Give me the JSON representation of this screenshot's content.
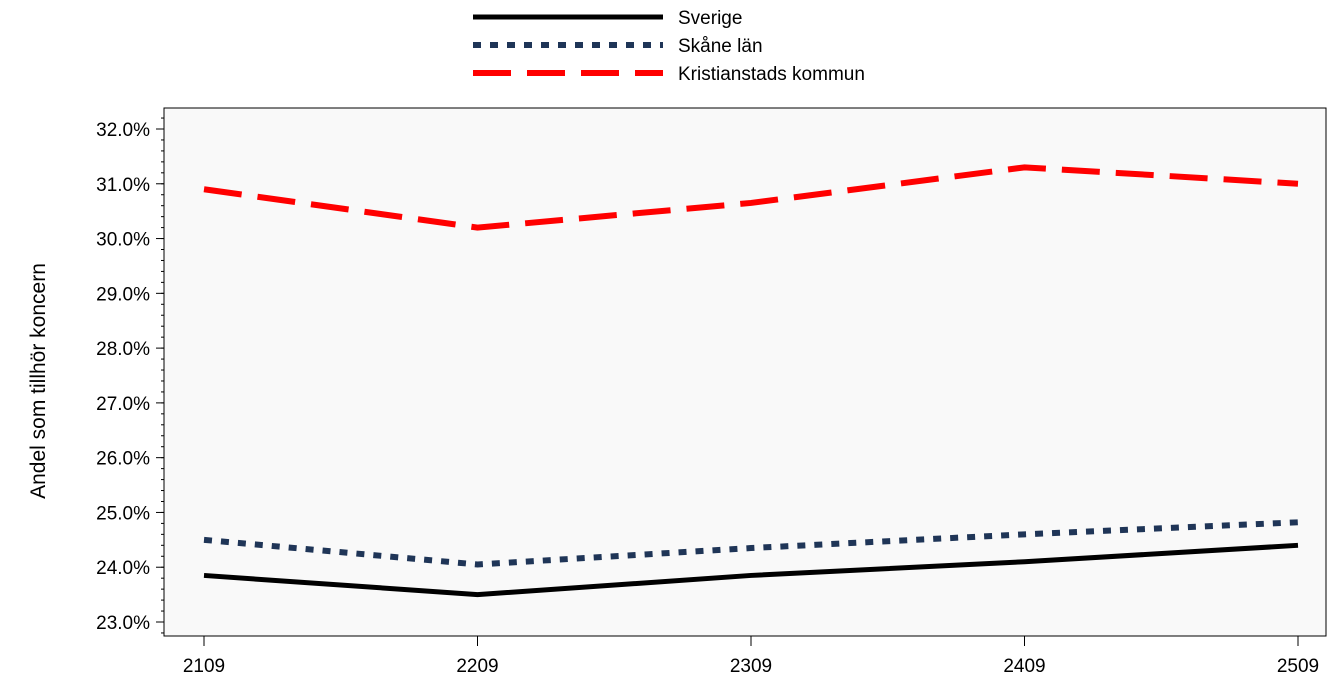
{
  "chart_data": {
    "type": "line",
    "title": "",
    "xlabel": "",
    "ylabel": "Andel som tillhör koncern",
    "categories": [
      "2109",
      "2209",
      "2309",
      "2409",
      "2509"
    ],
    "ylim": [
      22.8,
      32.4
    ],
    "yticks": [
      23.0,
      24.0,
      25.0,
      26.0,
      27.0,
      28.0,
      29.0,
      30.0,
      31.0,
      32.0
    ],
    "ytick_labels": [
      "23.0%",
      "24.0%",
      "25.0%",
      "26.0%",
      "27.0%",
      "28.0%",
      "29.0%",
      "30.0%",
      "31.0%",
      "32.0%"
    ],
    "legend_position": "top-center",
    "grid": false,
    "plot_background": "#f9f9f9",
    "series": [
      {
        "name": "Sverige",
        "values": [
          23.85,
          23.5,
          23.85,
          24.1,
          24.4
        ],
        "color": "#000000",
        "style": "solid"
      },
      {
        "name": "Skåne län",
        "values": [
          24.5,
          24.05,
          24.35,
          24.6,
          24.82
        ],
        "color": "#1f3557",
        "style": "dotted"
      },
      {
        "name": "Kristianstads kommun",
        "values": [
          30.9,
          30.2,
          30.65,
          31.3,
          31.0
        ],
        "color": "#ff0000",
        "style": "dashed"
      }
    ]
  }
}
